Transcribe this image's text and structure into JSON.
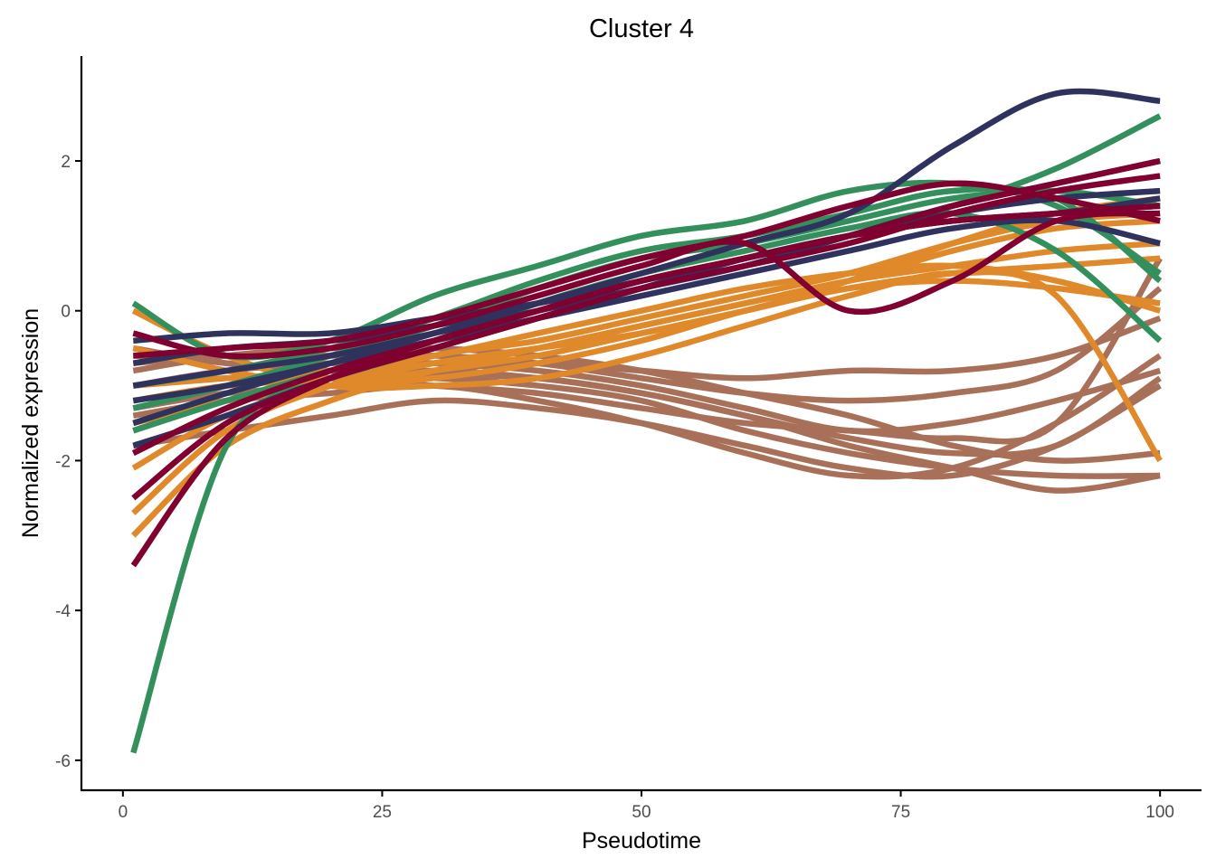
{
  "chart_data": {
    "type": "line",
    "title": "Cluster 4",
    "xlabel": "Pseudotime",
    "ylabel": "Normalized expression",
    "xlim": [
      -4,
      104
    ],
    "ylim": [
      -6.4,
      3.4
    ],
    "x_ticks": [
      0,
      25,
      50,
      75,
      100
    ],
    "x_tick_labels": [
      "0",
      "25",
      "50",
      "75",
      "100"
    ],
    "y_ticks": [
      -6,
      -4,
      -2,
      0,
      2
    ],
    "y_tick_labels": [
      "-6",
      "-4",
      "-2",
      "0",
      "2"
    ],
    "grid": false,
    "legend": "none",
    "colors": {
      "navy": "#30325e",
      "crimson": "#800030",
      "green": "#33905c",
      "orange": "#e0892a",
      "brown": "#a87058"
    },
    "x": [
      1,
      10,
      20,
      30,
      40,
      50,
      60,
      70,
      80,
      90,
      100
    ],
    "series": [
      {
        "color": "brown",
        "values": [
          -0.5,
          -0.7,
          -0.8,
          -0.85,
          -0.9,
          -1.1,
          -1.4,
          -1.7,
          -1.9,
          -1.8,
          -0.9
        ]
      },
      {
        "color": "brown",
        "values": [
          -1.8,
          -1.6,
          -1.4,
          -1.2,
          -1.3,
          -1.5,
          -1.8,
          -2.1,
          -2.2,
          -1.8,
          -1.0
        ]
      },
      {
        "color": "brown",
        "values": [
          -1.0,
          -0.9,
          -0.9,
          -0.9,
          -1.0,
          -1.2,
          -1.6,
          -1.9,
          -2.1,
          -2.2,
          -2.2
        ]
      },
      {
        "color": "brown",
        "values": [
          -1.3,
          -1.1,
          -1.0,
          -0.8,
          -0.7,
          -0.8,
          -0.9,
          -0.8,
          -0.8,
          -0.6,
          -0.1
        ]
      },
      {
        "color": "brown",
        "values": [
          -0.6,
          -0.7,
          -0.9,
          -1.0,
          -1.1,
          -1.3,
          -1.5,
          -1.6,
          -1.7,
          -1.5,
          0.7
        ]
      },
      {
        "color": "brown",
        "values": [
          -1.6,
          -1.2,
          -0.9,
          -0.8,
          -0.9,
          -1.1,
          -1.4,
          -1.8,
          -2.1,
          -2.4,
          -2.2
        ]
      },
      {
        "color": "brown",
        "values": [
          -0.8,
          -0.6,
          -0.5,
          -0.5,
          -0.6,
          -0.8,
          -1.1,
          -1.4,
          -1.8,
          -2.0,
          -1.9
        ]
      },
      {
        "color": "brown",
        "values": [
          -1.0,
          -0.8,
          -0.7,
          -0.7,
          -0.8,
          -1.0,
          -1.3,
          -1.6,
          -1.5,
          -1.2,
          -0.8
        ]
      },
      {
        "color": "brown",
        "values": [
          -1.4,
          -1.2,
          -1.1,
          -1.0,
          -1.2,
          -1.5,
          -1.9,
          -2.2,
          -2.1,
          -1.5,
          -0.6
        ]
      },
      {
        "color": "brown",
        "values": [
          -0.7,
          -0.6,
          -0.6,
          -0.6,
          -0.7,
          -0.9,
          -1.1,
          -1.2,
          -1.1,
          -0.8,
          0.3
        ]
      },
      {
        "color": "orange",
        "values": [
          -3.0,
          -1.8,
          -1.2,
          -0.8,
          -0.5,
          -0.2,
          0.1,
          0.4,
          0.8,
          1.1,
          1.2
        ]
      },
      {
        "color": "orange",
        "values": [
          -2.7,
          -1.6,
          -1.0,
          -0.6,
          -0.4,
          -0.1,
          0.2,
          0.5,
          0.9,
          1.2,
          1.3
        ]
      },
      {
        "color": "orange",
        "values": [
          -1.0,
          -0.9,
          -0.8,
          -0.6,
          -0.3,
          0.0,
          0.3,
          0.5,
          0.6,
          0.4,
          0.0
        ]
      },
      {
        "color": "orange",
        "values": [
          -0.5,
          -0.8,
          -1.0,
          -0.9,
          -0.7,
          -0.4,
          0.0,
          0.3,
          0.5,
          0.6,
          0.7
        ]
      },
      {
        "color": "orange",
        "values": [
          -1.5,
          -1.2,
          -1.0,
          -0.8,
          -0.6,
          -0.3,
          0.0,
          0.3,
          0.4,
          0.3,
          0.1
        ]
      },
      {
        "color": "orange",
        "values": [
          -2.1,
          -1.4,
          -1.0,
          -0.7,
          -0.5,
          -0.3,
          0.0,
          0.4,
          0.9,
          1.3,
          1.5
        ]
      },
      {
        "color": "orange",
        "values": [
          0.0,
          -0.6,
          -1.0,
          -1.0,
          -0.9,
          -0.6,
          -0.2,
          0.2,
          0.5,
          0.2,
          -2.0
        ]
      },
      {
        "color": "orange",
        "values": [
          -1.2,
          -1.0,
          -0.9,
          -0.7,
          -0.5,
          -0.2,
          0.1,
          0.4,
          0.6,
          0.8,
          0.9
        ]
      },
      {
        "color": "green",
        "values": [
          -5.9,
          -1.8,
          -0.9,
          -0.5,
          -0.1,
          0.3,
          0.6,
          1.0,
          1.4,
          1.9,
          2.6
        ]
      },
      {
        "color": "green",
        "values": [
          0.1,
          -0.6,
          -0.4,
          0.2,
          0.6,
          1.0,
          1.2,
          1.6,
          1.7,
          1.4,
          0.5
        ]
      },
      {
        "color": "green",
        "values": [
          -1.3,
          -1.0,
          -0.6,
          -0.2,
          0.3,
          0.7,
          0.9,
          1.2,
          1.5,
          1.6,
          1.4
        ]
      },
      {
        "color": "green",
        "values": [
          -1.6,
          -1.2,
          -0.8,
          -0.4,
          0.1,
          0.5,
          0.8,
          1.1,
          1.3,
          0.8,
          -0.4
        ]
      },
      {
        "color": "green",
        "values": [
          -1.0,
          -0.8,
          -0.5,
          -0.1,
          0.4,
          0.8,
          1.0,
          1.3,
          1.6,
          1.5,
          0.4
        ]
      },
      {
        "color": "navy",
        "values": [
          -1.5,
          -1.1,
          -0.7,
          -0.3,
          0.1,
          0.5,
          0.9,
          1.3,
          2.2,
          2.9,
          2.8
        ]
      },
      {
        "color": "navy",
        "values": [
          -1.0,
          -0.8,
          -0.6,
          -0.3,
          0.0,
          0.3,
          0.6,
          1.0,
          1.4,
          1.7,
          2.0
        ]
      },
      {
        "color": "navy",
        "values": [
          -0.4,
          -0.3,
          -0.3,
          -0.1,
          0.1,
          0.4,
          0.7,
          1.0,
          1.3,
          1.5,
          1.6
        ]
      },
      {
        "color": "navy",
        "values": [
          -1.8,
          -1.4,
          -0.9,
          -0.5,
          -0.1,
          0.3,
          0.7,
          1.0,
          1.2,
          1.3,
          1.5
        ]
      },
      {
        "color": "navy",
        "values": [
          -1.2,
          -1.0,
          -0.7,
          -0.4,
          -0.1,
          0.2,
          0.5,
          0.8,
          1.1,
          1.2,
          0.9
        ]
      },
      {
        "color": "navy",
        "values": [
          -0.7,
          -0.5,
          -0.4,
          -0.2,
          0.1,
          0.4,
          0.7,
          1.0,
          1.2,
          1.3,
          1.4
        ]
      },
      {
        "color": "crimson",
        "values": [
          -3.4,
          -1.7,
          -0.9,
          -0.4,
          0.0,
          0.4,
          0.7,
          1.0,
          1.4,
          1.7,
          2.0
        ]
      },
      {
        "color": "crimson",
        "values": [
          -2.5,
          -1.5,
          -0.9,
          -0.5,
          -0.1,
          0.3,
          0.6,
          0.9,
          1.3,
          1.6,
          1.8
        ]
      },
      {
        "color": "crimson",
        "values": [
          -0.3,
          -0.6,
          -0.5,
          -0.2,
          0.2,
          0.6,
          0.9,
          0.0,
          0.4,
          1.2,
          1.3
        ]
      },
      {
        "color": "crimson",
        "values": [
          -0.6,
          -0.5,
          -0.4,
          -0.1,
          0.3,
          0.7,
          1.0,
          1.4,
          1.7,
          1.5,
          1.2
        ]
      },
      {
        "color": "crimson",
        "values": [
          -1.9,
          -1.3,
          -0.8,
          -0.4,
          0.0,
          0.4,
          0.7,
          1.0,
          1.2,
          1.3,
          1.4
        ]
      }
    ]
  }
}
